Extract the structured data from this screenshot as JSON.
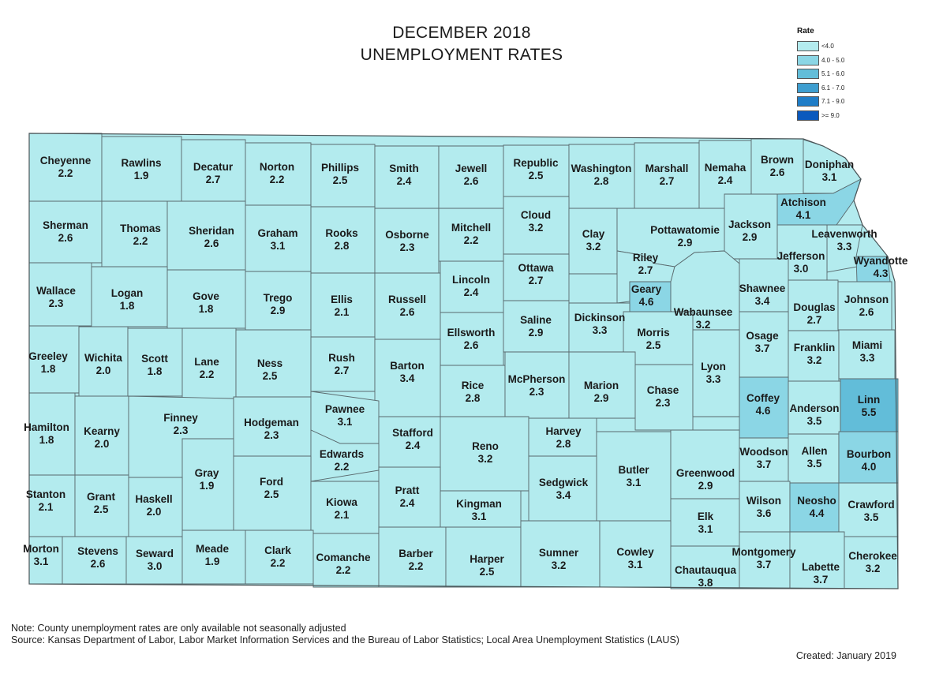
{
  "title": {
    "line1": "DECEMBER 2018",
    "line2": "UNEMPLOYMENT RATES"
  },
  "legend": {
    "title": "Rate",
    "items": [
      {
        "label": "<4.0",
        "color": "#b3ebee"
      },
      {
        "label": "4.0 - 5.0",
        "color": "#8bd6e5"
      },
      {
        "label": "5.1 - 6.0",
        "color": "#62bdd9"
      },
      {
        "label": "6.1 - 7.0",
        "color": "#3e9ed0"
      },
      {
        "label": "7.1 - 9.0",
        "color": "#1f7dc7"
      },
      {
        "label": ">= 9.0",
        "color": "#0a59bd"
      }
    ]
  },
  "counties": [
    {
      "name": "Cheyenne",
      "rate": "2.2"
    },
    {
      "name": "Rawlins",
      "rate": "1.9"
    },
    {
      "name": "Decatur",
      "rate": "2.7"
    },
    {
      "name": "Norton",
      "rate": "2.2"
    },
    {
      "name": "Phillips",
      "rate": "2.5"
    },
    {
      "name": "Smith",
      "rate": "2.4"
    },
    {
      "name": "Jewell",
      "rate": "2.6"
    },
    {
      "name": "Republic",
      "rate": "2.5"
    },
    {
      "name": "Washington",
      "rate": "2.8"
    },
    {
      "name": "Marshall",
      "rate": "2.7"
    },
    {
      "name": "Nemaha",
      "rate": "2.4"
    },
    {
      "name": "Brown",
      "rate": "2.6"
    },
    {
      "name": "Doniphan",
      "rate": "3.1"
    },
    {
      "name": "Sherman",
      "rate": "2.6"
    },
    {
      "name": "Thomas",
      "rate": "2.2"
    },
    {
      "name": "Sheridan",
      "rate": "2.6"
    },
    {
      "name": "Graham",
      "rate": "3.1"
    },
    {
      "name": "Rooks",
      "rate": "2.8"
    },
    {
      "name": "Osborne",
      "rate": "2.3"
    },
    {
      "name": "Mitchell",
      "rate": "2.2"
    },
    {
      "name": "Cloud",
      "rate": "3.2"
    },
    {
      "name": "Clay",
      "rate": "3.2"
    },
    {
      "name": "Pottawatomie",
      "rate": "2.9"
    },
    {
      "name": "Jackson",
      "rate": "2.9"
    },
    {
      "name": "Atchison",
      "rate": "4.1"
    },
    {
      "name": "Leavenworth",
      "rate": "3.3"
    },
    {
      "name": "Jefferson",
      "rate": "3.0"
    },
    {
      "name": "Wyandotte",
      "rate": "4.3"
    },
    {
      "name": "Wallace",
      "rate": "2.3"
    },
    {
      "name": "Logan",
      "rate": "1.8"
    },
    {
      "name": "Gove",
      "rate": "1.8"
    },
    {
      "name": "Trego",
      "rate": "2.9"
    },
    {
      "name": "Ellis",
      "rate": "2.1"
    },
    {
      "name": "Russell",
      "rate": "2.6"
    },
    {
      "name": "Lincoln",
      "rate": "2.4"
    },
    {
      "name": "Ottawa",
      "rate": "2.7"
    },
    {
      "name": "Riley",
      "rate": "2.7"
    },
    {
      "name": "Geary",
      "rate": "4.6"
    },
    {
      "name": "Wabaunsee",
      "rate": "3.2"
    },
    {
      "name": "Shawnee",
      "rate": "3.4"
    },
    {
      "name": "Douglas",
      "rate": "2.7"
    },
    {
      "name": "Johnson",
      "rate": "2.6"
    },
    {
      "name": "Ellsworth",
      "rate": "2.6"
    },
    {
      "name": "Saline",
      "rate": "2.9"
    },
    {
      "name": "Dickinson",
      "rate": "3.3"
    },
    {
      "name": "Morris",
      "rate": "2.5"
    },
    {
      "name": "Osage",
      "rate": "3.7"
    },
    {
      "name": "Franklin",
      "rate": "3.2"
    },
    {
      "name": "Miami",
      "rate": "3.3"
    },
    {
      "name": "Greeley",
      "rate": "1.8"
    },
    {
      "name": "Wichita",
      "rate": "2.0"
    },
    {
      "name": "Scott",
      "rate": "1.8"
    },
    {
      "name": "Lane",
      "rate": "2.2"
    },
    {
      "name": "Ness",
      "rate": "2.5"
    },
    {
      "name": "Rush",
      "rate": "2.7"
    },
    {
      "name": "Barton",
      "rate": "3.4"
    },
    {
      "name": "Rice",
      "rate": "2.8"
    },
    {
      "name": "McPherson",
      "rate": "2.3"
    },
    {
      "name": "Marion",
      "rate": "2.9"
    },
    {
      "name": "Chase",
      "rate": "2.3"
    },
    {
      "name": "Lyon",
      "rate": "3.3"
    },
    {
      "name": "Coffey",
      "rate": "4.6"
    },
    {
      "name": "Anderson",
      "rate": "3.5"
    },
    {
      "name": "Linn",
      "rate": "5.5"
    },
    {
      "name": "Hamilton",
      "rate": "1.8"
    },
    {
      "name": "Kearny",
      "rate": "2.0"
    },
    {
      "name": "Finney",
      "rate": "2.3"
    },
    {
      "name": "Hodgeman",
      "rate": "2.3"
    },
    {
      "name": "Pawnee",
      "rate": "3.1"
    },
    {
      "name": "Stafford",
      "rate": "2.4"
    },
    {
      "name": "Reno",
      "rate": "3.2"
    },
    {
      "name": "Harvey",
      "rate": "2.8"
    },
    {
      "name": "Edwards",
      "rate": "2.2"
    },
    {
      "name": "Gray",
      "rate": "1.9"
    },
    {
      "name": "Ford",
      "rate": "2.5"
    },
    {
      "name": "Butler",
      "rate": "3.1"
    },
    {
      "name": "Greenwood",
      "rate": "2.9"
    },
    {
      "name": "Woodson",
      "rate": "3.7"
    },
    {
      "name": "Allen",
      "rate": "3.5"
    },
    {
      "name": "Bourbon",
      "rate": "4.0"
    },
    {
      "name": "Stanton",
      "rate": "2.1"
    },
    {
      "name": "Grant",
      "rate": "2.5"
    },
    {
      "name": "Haskell",
      "rate": "2.0"
    },
    {
      "name": "Pratt",
      "rate": "2.4"
    },
    {
      "name": "Sedgwick",
      "rate": "3.4"
    },
    {
      "name": "Kingman",
      "rate": "3.1"
    },
    {
      "name": "Kiowa",
      "rate": "2.1"
    },
    {
      "name": "Elk",
      "rate": "3.1"
    },
    {
      "name": "Wilson",
      "rate": "3.6"
    },
    {
      "name": "Neosho",
      "rate": "4.4"
    },
    {
      "name": "Crawford",
      "rate": "3.5"
    },
    {
      "name": "Morton",
      "rate": "3.1"
    },
    {
      "name": "Stevens",
      "rate": "2.6"
    },
    {
      "name": "Seward",
      "rate": "3.0"
    },
    {
      "name": "Meade",
      "rate": "1.9"
    },
    {
      "name": "Clark",
      "rate": "2.2"
    },
    {
      "name": "Comanche",
      "rate": "2.2"
    },
    {
      "name": "Barber",
      "rate": "2.2"
    },
    {
      "name": "Harper",
      "rate": "2.5"
    },
    {
      "name": "Sumner",
      "rate": "3.2"
    },
    {
      "name": "Cowley",
      "rate": "3.1"
    },
    {
      "name": "Chautauqua",
      "rate": "3.8"
    },
    {
      "name": "Montgomery",
      "rate": "3.7"
    },
    {
      "name": "Labette",
      "rate": "3.7"
    },
    {
      "name": "Cherokee",
      "rate": "3.2"
    }
  ],
  "notes": {
    "line1": "Note: County unemployment rates are only available not seasonally adjusted",
    "line2": "Source: Kansas Department of Labor, Labor Market Information Services and the Bureau of Labor Statistics; Local Area Unemployment Statistics (LAUS)",
    "created": "Created:  January 2019"
  }
}
